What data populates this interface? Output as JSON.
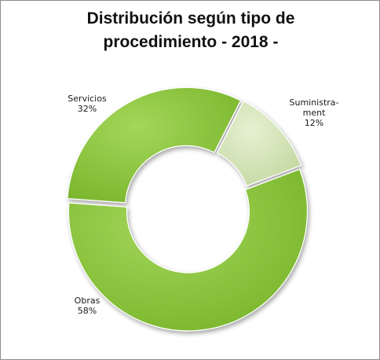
{
  "chart_data": {
    "type": "pie",
    "variant": "donut",
    "title_lines": [
      "Distribución según tipo de",
      "procedimiento - 2018 -"
    ],
    "slices": [
      {
        "label_lines": [
          "Suministra-",
          "ment"
        ],
        "value": 12,
        "value_label": "12%",
        "color": "#d7e6b9"
      },
      {
        "label_lines": [
          "Obras"
        ],
        "value": 58,
        "value_label": "58%",
        "color": "#8cc63e"
      },
      {
        "label_lines": [
          "Servicios"
        ],
        "value": 32,
        "value_label": "32%",
        "color": "#8cc63e"
      }
    ],
    "legend": "none"
  }
}
